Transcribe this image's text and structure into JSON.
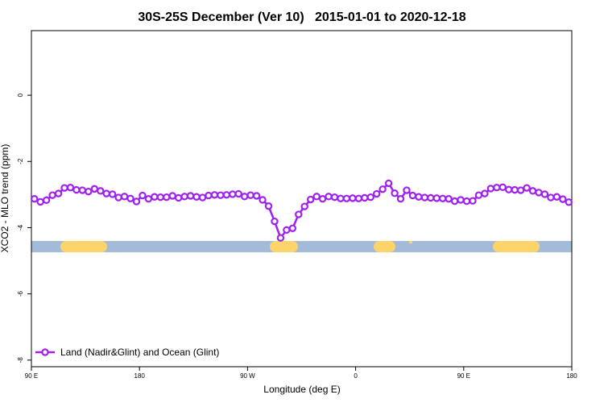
{
  "chart_data": {
    "type": "line",
    "title": "30S-25S December (Ver 10)   2015-01-01 to 2020-12-18",
    "x_label": "Longitude (deg E)",
    "y_label": "XCO2 - MLO trend (ppm)",
    "xlim": [
      90,
      540
    ],
    "xticks": [
      {
        "value": 90,
        "label": "90 E"
      },
      {
        "value": 180,
        "label": "180"
      },
      {
        "value": 270,
        "label": "90 W"
      },
      {
        "value": 360,
        "label": "0"
      },
      {
        "value": 450,
        "label": "90 E"
      },
      {
        "value": 540,
        "label": "180"
      }
    ],
    "ylim": [
      -8.2,
      1.95
    ],
    "yticks": [
      -8,
      -6,
      -4,
      -2,
      0
    ],
    "legend": "bottom-left",
    "x": [
      92.5,
      97.5,
      102.5,
      107.5,
      112.5,
      117.5,
      122.5,
      127.5,
      132.5,
      137.5,
      142.5,
      147.5,
      152.5,
      157.5,
      162.5,
      167.5,
      172.5,
      177.5,
      182.5,
      187.5,
      192.5,
      197.5,
      202.5,
      207.5,
      212.5,
      217.5,
      222.5,
      227.5,
      232.5,
      237.5,
      242.5,
      247.5,
      252.5,
      257.5,
      262.5,
      267.5,
      272.5,
      277.5,
      282.5,
      287.5,
      292.5,
      297.5,
      302.5,
      307.5,
      312.5,
      317.5,
      322.5,
      327.5,
      332.5,
      337.5,
      342.5,
      347.5,
      352.5,
      357.5,
      362.5,
      367.5,
      372.5,
      377.5,
      382.5,
      387.5,
      392.5,
      397.5,
      402.5,
      407.5,
      412.5,
      417.5,
      422.5,
      427.5,
      432.5,
      437.5,
      442.5,
      447.5,
      452.5,
      457.5,
      462.5,
      467.5,
      472.5,
      477.5,
      482.5,
      487.5,
      492.5,
      497.5,
      502.5,
      507.5,
      512.5,
      517.5,
      522.5,
      527.5,
      532.5,
      537.5
    ],
    "series": [
      {
        "name": "Land (Nadir&Glint) and Ocean (Glint)",
        "color": "#a020f0",
        "values": [
          -3.13,
          -3.22,
          -3.17,
          -3.02,
          -2.97,
          -2.8,
          -2.79,
          -2.86,
          -2.87,
          -2.91,
          -2.83,
          -2.89,
          -2.97,
          -2.99,
          -3.09,
          -3.06,
          -3.12,
          -3.21,
          -3.03,
          -3.13,
          -3.07,
          -3.08,
          -3.08,
          -3.04,
          -3.1,
          -3.06,
          -3.04,
          -3.07,
          -3.09,
          -3.03,
          -3.01,
          -3.02,
          -3.01,
          -2.99,
          -2.98,
          -3.06,
          -3.02,
          -3.04,
          -3.16,
          -3.35,
          -3.81,
          -4.31,
          -4.07,
          -4.02,
          -3.6,
          -3.36,
          -3.15,
          -3.06,
          -3.13,
          -3.06,
          -3.08,
          -3.12,
          -3.12,
          -3.11,
          -3.12,
          -3.1,
          -3.08,
          -2.98,
          -2.84,
          -2.66,
          -2.96,
          -3.13,
          -2.87,
          -3.03,
          -3.07,
          -3.09,
          -3.1,
          -3.11,
          -3.12,
          -3.13,
          -3.2,
          -3.16,
          -3.2,
          -3.19,
          -3.02,
          -2.97,
          -2.82,
          -2.79,
          -2.78,
          -2.85,
          -2.86,
          -2.87,
          -2.8,
          -2.89,
          -2.94,
          -2.99,
          -3.09,
          -3.07,
          -3.14,
          -3.23
        ]
      }
    ]
  }
}
